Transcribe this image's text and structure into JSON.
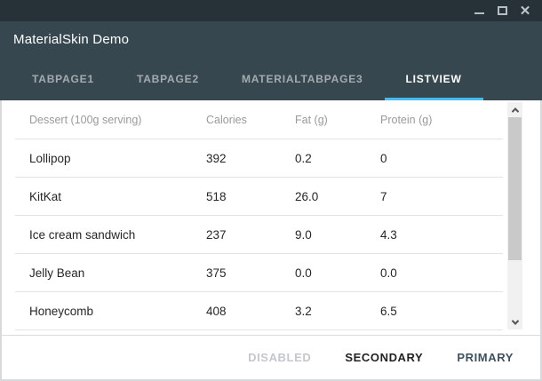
{
  "window": {
    "title": "MaterialSkin Demo",
    "controls": {
      "minimize_icon": "window-minimize",
      "maximize_icon": "window-maximize",
      "close_icon": "window-close",
      "close_glyph": "✕"
    }
  },
  "tabs": [
    {
      "label": "TABPAGE1",
      "active": false
    },
    {
      "label": "TABPAGE2",
      "active": false
    },
    {
      "label": "MATERIALTABPAGE3",
      "active": false
    },
    {
      "label": "LISTVIEW",
      "active": true
    }
  ],
  "listview": {
    "headers": [
      "Dessert (100g serving)",
      "Calories",
      "Fat (g)",
      "Protein (g)"
    ],
    "rows": [
      [
        "Lollipop",
        "392",
        "0.2",
        "0"
      ],
      [
        "KitKat",
        "518",
        "26.0",
        "7"
      ],
      [
        "Ice cream sandwich",
        "237",
        "9.0",
        "4.3"
      ],
      [
        "Jelly Bean",
        "375",
        "0.0",
        "0.0"
      ],
      [
        "Honeycomb",
        "408",
        "3.2",
        "6.5"
      ]
    ]
  },
  "footer": {
    "buttons": [
      {
        "label": "DISABLED",
        "state": "disabled"
      },
      {
        "label": "SECONDARY",
        "state": "enabled"
      },
      {
        "label": "PRIMARY",
        "state": "enabled"
      }
    ]
  },
  "colors": {
    "status_bar": "#263238",
    "action_bar": "#37474F",
    "accent": "#44BCF2",
    "header_text": "#9A9A9A",
    "cell_text": "#262626",
    "divider": "#E3E3E3",
    "disabled_button_text": "#C4C8CC",
    "secondary_button_text": "#212121",
    "primary_button_text": "#3C5160"
  }
}
